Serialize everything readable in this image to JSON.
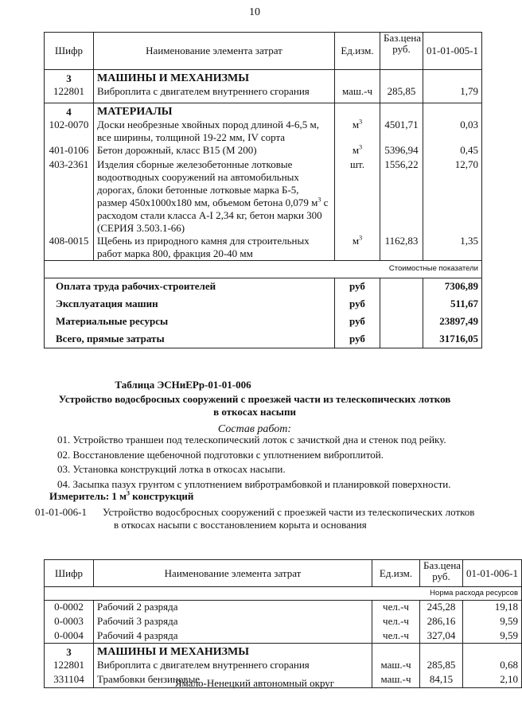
{
  "page_number": "10",
  "table1": {
    "headers": [
      "Шифр",
      "Наименование элемента затрат",
      "Ед.изм.",
      "Баз.цена руб.",
      "01-01-005-1"
    ],
    "sections": [
      {
        "code": "3",
        "title": "МАШИНЫ И МЕХАНИЗМЫ",
        "rows": [
          [
            "122801",
            "Виброплита с двигателем внутреннего сгорания",
            "маш.-ч",
            "285,85",
            "1,79"
          ]
        ]
      },
      {
        "code": "4",
        "title": "МАТЕРИАЛЫ",
        "rows": [
          [
            "102-0070",
            "Доски необрезные хвойных пород длиной 4-6,5 м, все ширины, толщиной 19-22 мм, IV сорта",
            "м3",
            "4501,71",
            "0,03"
          ],
          [
            "401-0106",
            "Бетон дорожный, класс В15 (М 200)",
            "м3",
            "5396,94",
            "0,45"
          ],
          [
            "403-2361",
            "Изделия сборные железобетонные лотковые водоотводных сооружений на автомобильных дорогах, блоки бетонные лотковые марка Б-5, размер 450х1000х180 мм, объемом бетона 0,079 м3 с расходом стали класса А-I 2,34 кг, бетон марки 300 (СЕРИЯ 3.503.1-66)",
            "шт.",
            "1556,22",
            "12,70"
          ],
          [
            "408-0015",
            "Щебень из природного камня для строительных работ марка 800, фракция 20-40 мм",
            "м3",
            "1162,83",
            "1,35"
          ]
        ]
      }
    ],
    "cost_header": "Стоимостные показатели",
    "costs": [
      [
        "Оплата труда рабочих-строителей",
        "руб",
        "7306,89"
      ],
      [
        "Эксплуатация машин",
        "руб",
        "511,67"
      ],
      [
        "Материальные ресурсы",
        "руб",
        "23897,49"
      ],
      [
        "Всего, прямые затраты",
        "руб",
        "31716,05"
      ]
    ]
  },
  "section2": {
    "table_title": "Таблица  ЭСНиЕРр-01-01-006",
    "subtitle": "Устройство водосбросных сооружений с проезжей части из телескопических лотков в откосах насыпи",
    "works_title": "Состав работ:",
    "works": [
      "01. Устройство  траншеи под телескопический лоток с зачисткой дна и стенок под рейку.",
      "02. Восстановление щебеночной подготовки с уплотнением виброплитой.",
      "03. Установка конструкций лотка в откосах насыпи.",
      "04. Засыпка пазух грунтом с уплотнением вибротрамбовкой и планировкой поверхности."
    ],
    "measure": "Измеритель: 1 м3 конструкций",
    "item_code": "01-01-006-1",
    "item_text": "Устройство водосбросных сооружений с проезжей части из телескопических лотков в откосах насыпи с восстановлением корыта и основания"
  },
  "table2": {
    "headers": [
      "Шифр",
      "Наименование элемента затрат",
      "Ед.изм.",
      "Баз.цена руб.",
      "01-01-006-1"
    ],
    "norm_header": "Норма расхода ресурсов",
    "labor": [
      [
        "0-0002",
        "Рабочий 2 разряда",
        "чел.-ч",
        "245,28",
        "19,18"
      ],
      [
        "0-0003",
        "Рабочий 3 разряда",
        "чел.-ч",
        "286,16",
        "9,59"
      ],
      [
        "0-0004",
        "Рабочий 4 разряда",
        "чел.-ч",
        "327,04",
        "9,59"
      ]
    ],
    "section": {
      "code": "3",
      "title": "МАШИНЫ И МЕХАНИЗМЫ",
      "rows": [
        [
          "122801",
          "Виброплита с двигателем внутреннего сгорания",
          "маш.-ч",
          "285,85",
          "0,68"
        ],
        [
          "331104",
          "Трамбовки бензиновые",
          "маш.-ч",
          "84,15",
          "2,10"
        ]
      ]
    }
  },
  "footer": "Ямало-Ненецкий автономный округ"
}
